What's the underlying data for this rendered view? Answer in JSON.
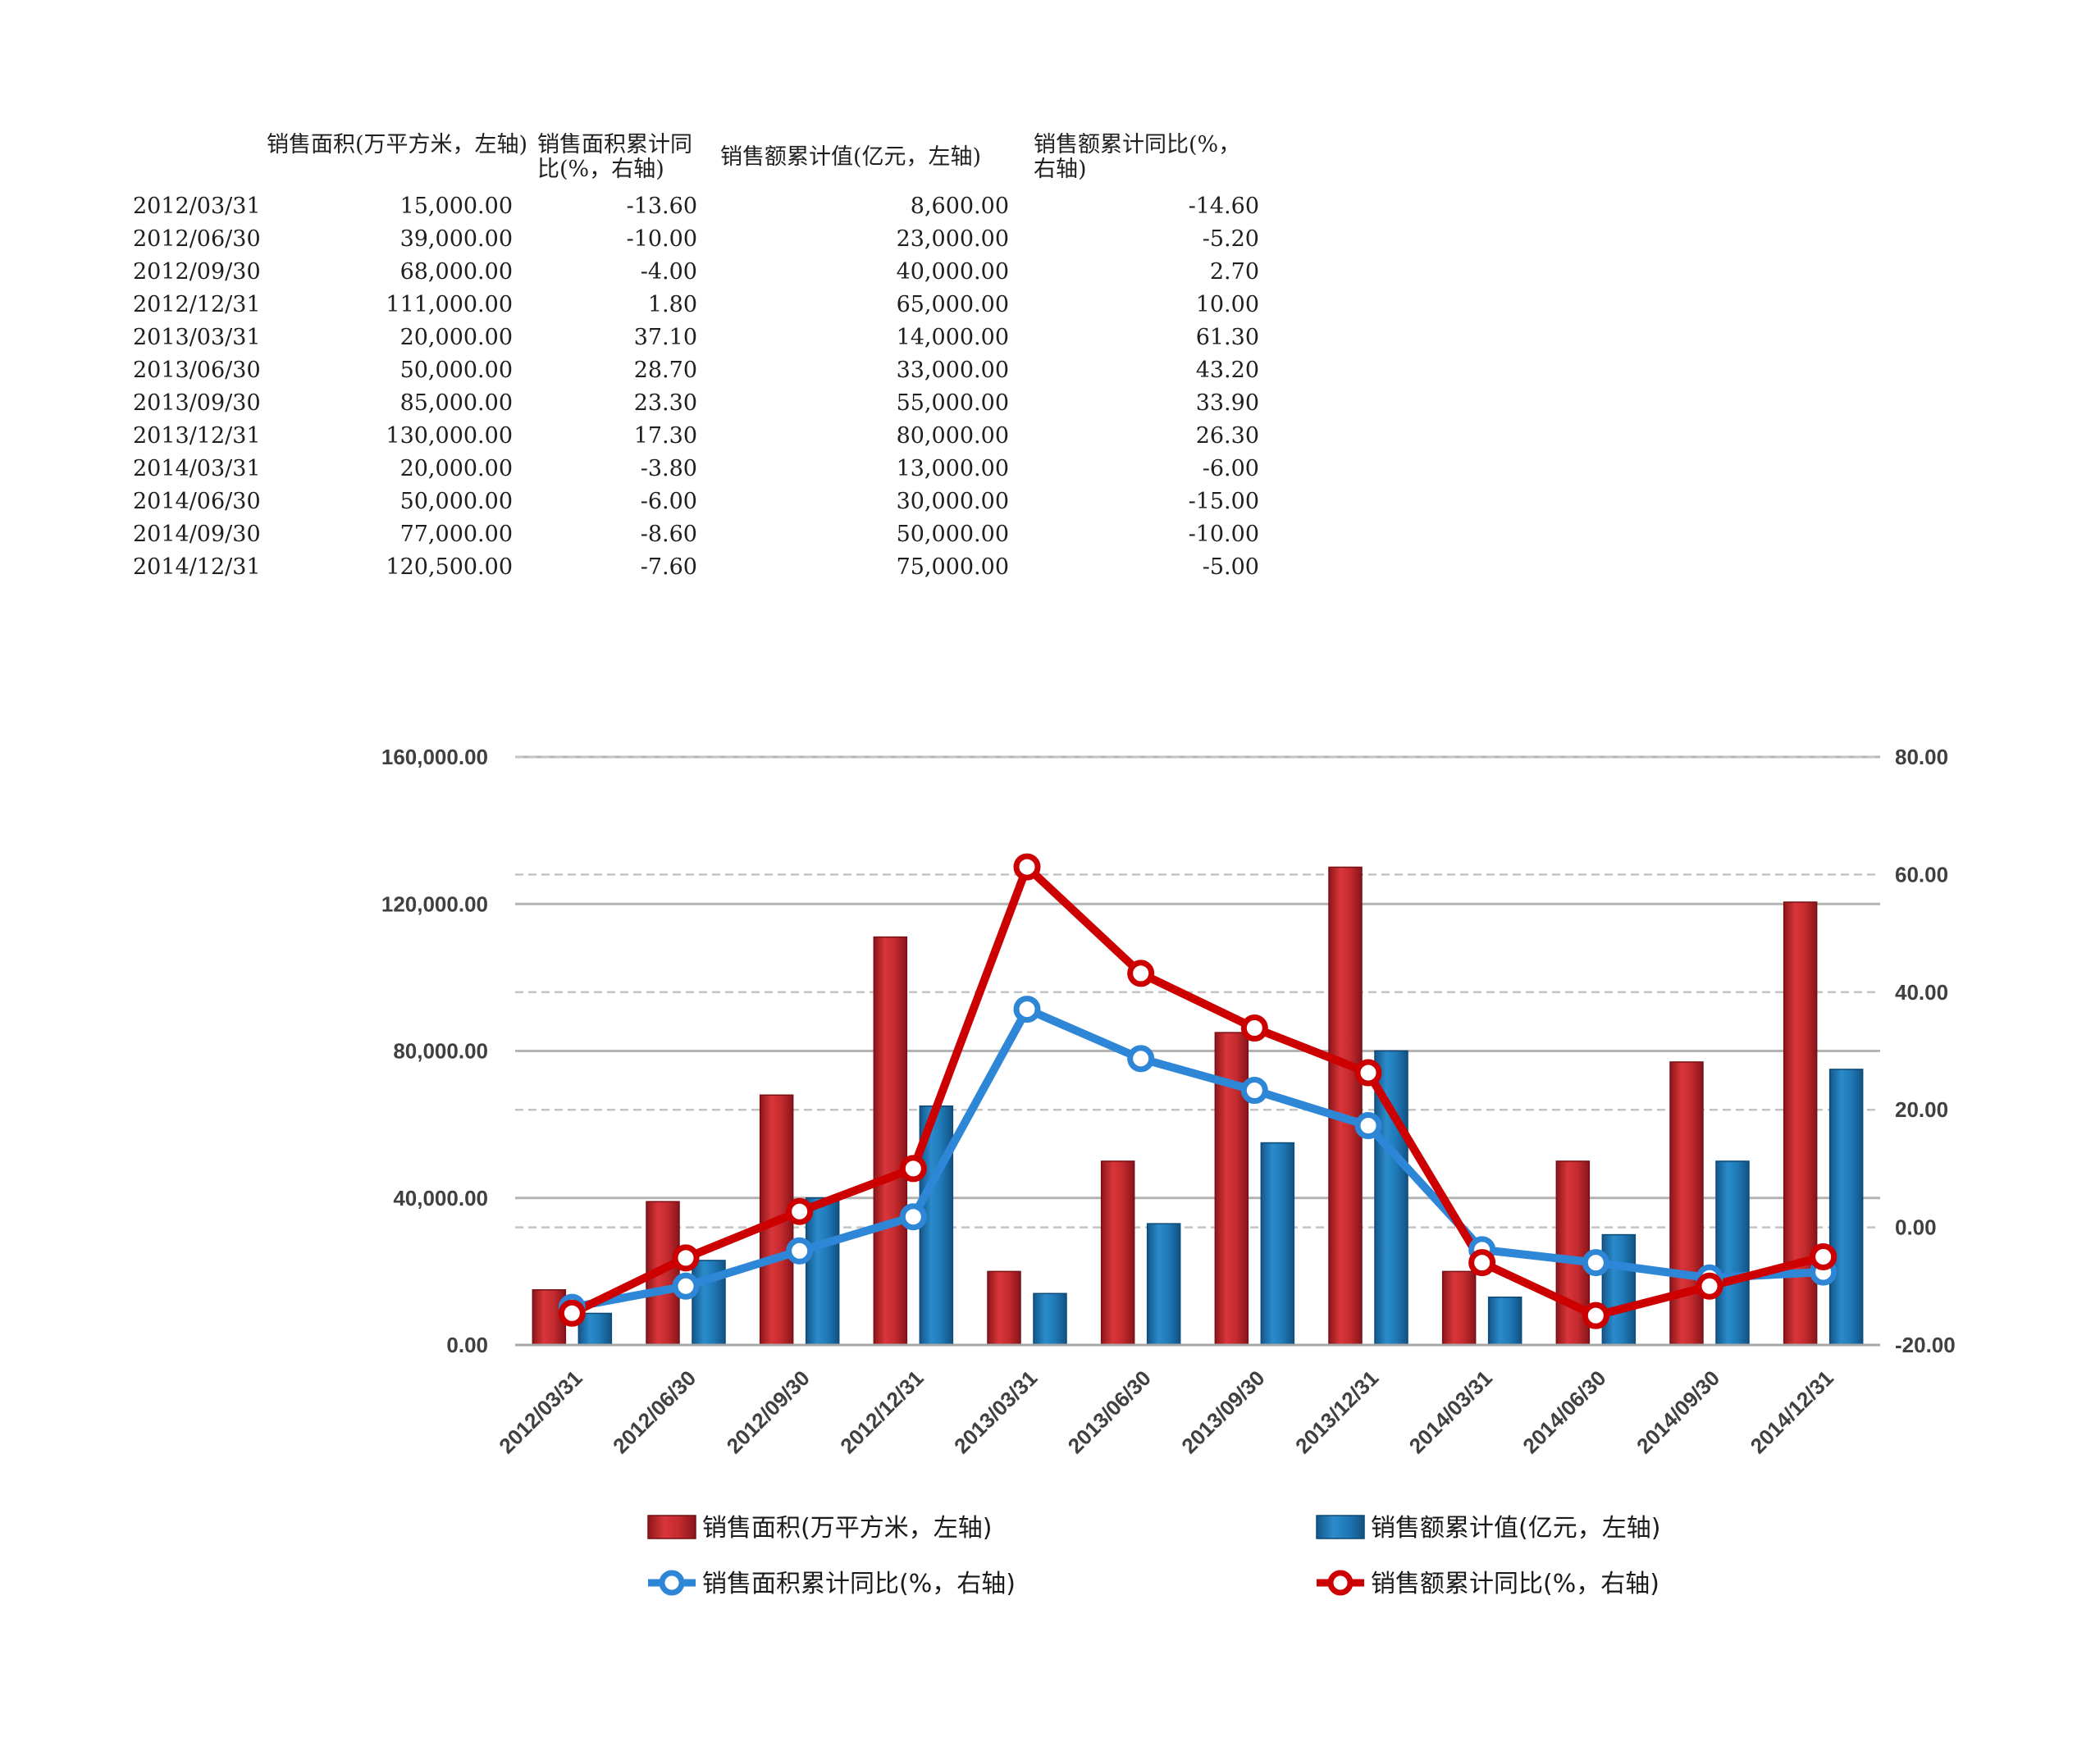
{
  "table": {
    "headers": [
      "销售面积(万平方米，左轴)",
      "销售面积累计同比(%，右轴)",
      "销售额累计值(亿元，左轴)",
      "销售额累计同比(%，右轴)"
    ],
    "rows": [
      {
        "date": "2012/03/31",
        "area": "15,000.00",
        "area_yoy": "-13.60",
        "sales": "8,600.00",
        "sales_yoy": "-14.60"
      },
      {
        "date": "2012/06/30",
        "area": "39,000.00",
        "area_yoy": "-10.00",
        "sales": "23,000.00",
        "sales_yoy": "-5.20"
      },
      {
        "date": "2012/09/30",
        "area": "68,000.00",
        "area_yoy": "-4.00",
        "sales": "40,000.00",
        "sales_yoy": "2.70"
      },
      {
        "date": "2012/12/31",
        "area": "111,000.00",
        "area_yoy": "1.80",
        "sales": "65,000.00",
        "sales_yoy": "10.00"
      },
      {
        "date": "2013/03/31",
        "area": "20,000.00",
        "area_yoy": "37.10",
        "sales": "14,000.00",
        "sales_yoy": "61.30"
      },
      {
        "date": "2013/06/30",
        "area": "50,000.00",
        "area_yoy": "28.70",
        "sales": "33,000.00",
        "sales_yoy": "43.20"
      },
      {
        "date": "2013/09/30",
        "area": "85,000.00",
        "area_yoy": "23.30",
        "sales": "55,000.00",
        "sales_yoy": "33.90"
      },
      {
        "date": "2013/12/31",
        "area": "130,000.00",
        "area_yoy": "17.30",
        "sales": "80,000.00",
        "sales_yoy": "26.30"
      },
      {
        "date": "2014/03/31",
        "area": "20,000.00",
        "area_yoy": "-3.80",
        "sales": "13,000.00",
        "sales_yoy": "-6.00"
      },
      {
        "date": "2014/06/30",
        "area": "50,000.00",
        "area_yoy": "-6.00",
        "sales": "30,000.00",
        "sales_yoy": "-15.00"
      },
      {
        "date": "2014/09/30",
        "area": "77,000.00",
        "area_yoy": "-8.60",
        "sales": "50,000.00",
        "sales_yoy": "-10.00"
      },
      {
        "date": "2014/12/31",
        "area": "120,500.00",
        "area_yoy": "-7.60",
        "sales": "75,000.00",
        "sales_yoy": "-5.00"
      }
    ]
  },
  "chart_data": {
    "type": "bar",
    "categories": [
      "2012/03/31",
      "2012/06/30",
      "2012/09/30",
      "2012/12/31",
      "2013/03/31",
      "2013/06/30",
      "2013/09/30",
      "2013/12/31",
      "2014/03/31",
      "2014/06/30",
      "2014/09/30",
      "2014/12/31"
    ],
    "series": [
      {
        "name": "销售面积(万平方米，左轴)",
        "type": "bar",
        "axis": "left",
        "color": "#c0282d",
        "values": [
          15000,
          39000,
          68000,
          111000,
          20000,
          50000,
          85000,
          130000,
          20000,
          50000,
          77000,
          120500
        ]
      },
      {
        "name": "销售额累计值(亿元，左轴)",
        "type": "bar",
        "axis": "left",
        "color": "#1f78b4",
        "values": [
          8600,
          23000,
          40000,
          65000,
          14000,
          33000,
          55000,
          80000,
          13000,
          30000,
          50000,
          75000
        ]
      },
      {
        "name": "销售面积累计同比(%，右轴)",
        "type": "line",
        "axis": "right",
        "color": "#2e86d6",
        "values": [
          -13.6,
          -10.0,
          -4.0,
          1.8,
          37.1,
          28.7,
          23.3,
          17.3,
          -3.8,
          -6.0,
          -8.6,
          -7.6
        ]
      },
      {
        "name": "销售额累计同比(%，右轴)",
        "type": "line",
        "axis": "right",
        "color": "#cc0000",
        "values": [
          -14.6,
          -5.2,
          2.7,
          10.0,
          61.3,
          43.2,
          33.9,
          26.3,
          -6.0,
          -15.0,
          -10.0,
          -5.0
        ]
      }
    ],
    "left_axis": {
      "ylim": [
        0,
        160000
      ],
      "ticks": [
        "0.00",
        "40,000.00",
        "80,000.00",
        "120,000.00",
        "160,000.00"
      ]
    },
    "right_axis": {
      "ylim": [
        -20,
        80
      ],
      "ticks": [
        "-20.00",
        "0.00",
        "20.00",
        "40.00",
        "60.00",
        "80.00"
      ]
    },
    "legend_position": "bottom",
    "grid": true
  }
}
